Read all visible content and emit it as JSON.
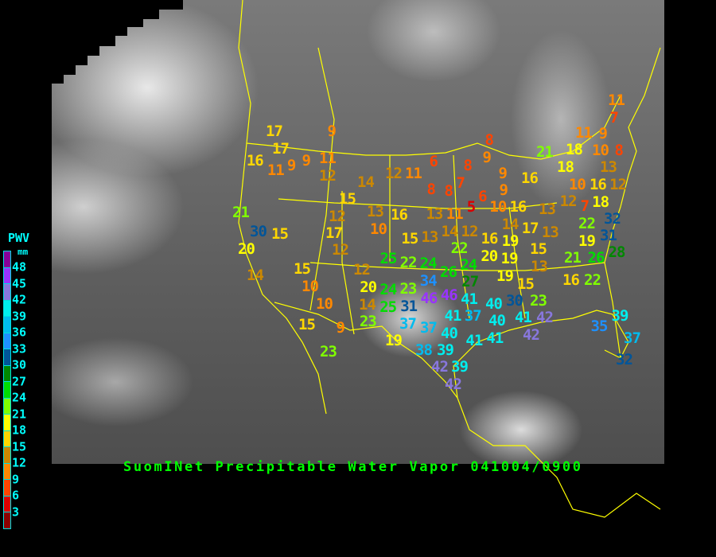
{
  "title": "SuomINet Precipitable Water Vapor 041004/0900",
  "legend": {
    "title": "PWV",
    "unit": "mm",
    "labels": [
      "48",
      "45",
      "42",
      "39",
      "36",
      "33",
      "30",
      "27",
      "24",
      "21",
      "18",
      "15",
      "12",
      "9",
      "6",
      "3"
    ],
    "colors_top_to_bottom": [
      "#880099",
      "#9933ff",
      "#8877dd",
      "#00eeee",
      "#00bbee",
      "#1e90ff",
      "#005599",
      "#008800",
      "#00dd00",
      "#80ff00",
      "#ffff00",
      "#ffd700",
      "#cc8800",
      "#ff8800",
      "#ff4400",
      "#dd0000",
      "#8b0000"
    ]
  },
  "map": {
    "background": "grayscale infrared satellite",
    "border_color": "#ffff00"
  },
  "stations": [
    17,
    17,
    16,
    9,
    11,
    9,
    9,
    11,
    12,
    14,
    12,
    11,
    21,
    30,
    15,
    20,
    15,
    13,
    16,
    10,
    12,
    17,
    12,
    15,
    6,
    8,
    8,
    7,
    8,
    9,
    8,
    9,
    6,
    9,
    5,
    10,
    16,
    13,
    11,
    16,
    13,
    21,
    18,
    18,
    11,
    10,
    9,
    8,
    11,
    7,
    13,
    12,
    12,
    10,
    16,
    18,
    7,
    22,
    32,
    31,
    28,
    19,
    17,
    13,
    14,
    14,
    13,
    12,
    16,
    19,
    20,
    19,
    15,
    21,
    26,
    22,
    24,
    26,
    19,
    13,
    15,
    16,
    22,
    23,
    27,
    34,
    41,
    46,
    46,
    30,
    41,
    37,
    40,
    40,
    41,
    42,
    42,
    41,
    40,
    41,
    39,
    38,
    42,
    39,
    42,
    37,
    37,
    31,
    23,
    24,
    20,
    14,
    25,
    23,
    19,
    25,
    22,
    24,
    12,
    15,
    10,
    14,
    10,
    15,
    9,
    23,
    39,
    35,
    37,
    32
  ]
}
